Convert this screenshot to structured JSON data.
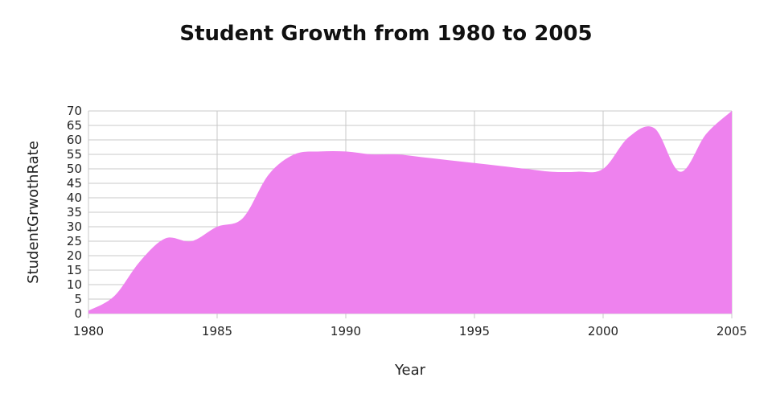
{
  "chart_data": {
    "type": "area",
    "title": "Student Growth from 1980 to 2005",
    "xlabel": "Year",
    "ylabel": "StudentGrwothRate",
    "x": [
      1980,
      1981,
      1982,
      1983,
      1984,
      1985,
      1986,
      1987,
      1988,
      1989,
      1990,
      1991,
      1992,
      1993,
      1994,
      1995,
      1996,
      1997,
      1998,
      1999,
      2000,
      2001,
      2002,
      2003,
      2004,
      2005
    ],
    "values": [
      1,
      6,
      18,
      26,
      25,
      30,
      33,
      48,
      55,
      56,
      56,
      55,
      55,
      54,
      53,
      52,
      51,
      50,
      49,
      49,
      50,
      61,
      64,
      49,
      62,
      70
    ],
    "xlim": [
      1980,
      2005
    ],
    "ylim": [
      0,
      70
    ],
    "x_ticks": [
      "1980",
      "1985",
      "1990",
      "1995",
      "2000",
      "2005"
    ],
    "y_ticks": [
      "0",
      "5",
      "10",
      "15",
      "20",
      "25",
      "30",
      "35",
      "40",
      "45",
      "50",
      "55",
      "60",
      "65",
      "70"
    ],
    "grid": true,
    "colors": {
      "area": "#ee82ee",
      "grid": "#c8c8c8"
    }
  }
}
